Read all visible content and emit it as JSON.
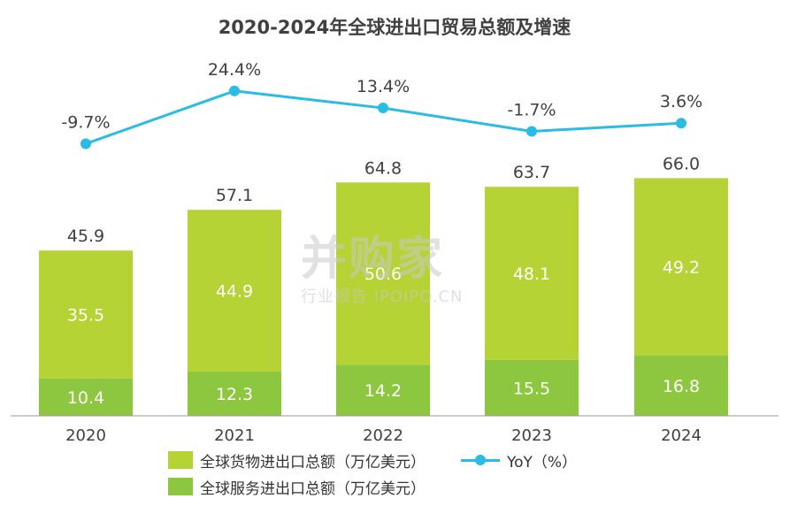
{
  "chart_data": {
    "type": "bar",
    "title": "2020-2024年全球进出口贸易总额及增速",
    "categories": [
      "2020",
      "2021",
      "2022",
      "2023",
      "2024"
    ],
    "series": [
      {
        "name": "全球服务进出口总额（万亿美元）",
        "values": [
          10.4,
          12.3,
          14.2,
          15.5,
          16.8
        ],
        "color": "#8DC63F",
        "stack": "total"
      },
      {
        "name": "全球货物进出口总额（万亿美元）",
        "values": [
          35.5,
          44.9,
          50.6,
          48.1,
          49.2
        ],
        "color": "#B5D334",
        "stack": "total"
      }
    ],
    "totals": [
      "45.9",
      "57.1",
      "64.8",
      "63.7",
      "66.0"
    ],
    "line_series": {
      "name": "YoY（%）",
      "values": [
        -9.7,
        24.4,
        13.4,
        -1.7,
        3.6
      ],
      "labels": [
        "-9.7%",
        "24.4%",
        "13.4%",
        "-1.7%",
        "3.6%"
      ],
      "color": "#29BCE4"
    },
    "watermark": {
      "main": "并购家",
      "sub": "行业报告 IPOIPO.CN"
    }
  }
}
